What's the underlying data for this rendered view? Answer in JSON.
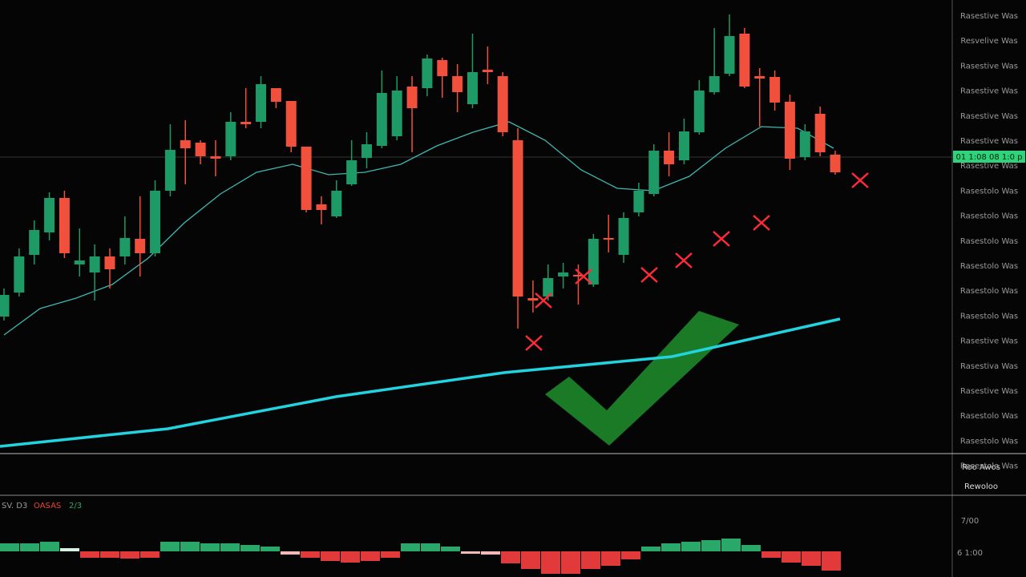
{
  "price_axis_labels": [
    "Rasestive Was",
    "Resvelive Was",
    "Rasestive Was",
    "Rasestive Was",
    "Rasestive Was",
    "Rasestive Was",
    "Rasestive Was",
    "Rasestolo Was",
    "Rasestolo Was",
    "Rasestolo Was",
    "Rasestolo Was",
    "Rasestolo Was",
    "Rasestolo Was",
    "Rasestive Was",
    "Rasestiva Was",
    "Rasestive Was",
    "Rasestolo Was",
    "Rasestolo Was",
    "Rasestolo Was"
  ],
  "current_price_label": "01 1:08 08 1:0 p",
  "lower_axis_labels": [
    "Roo Awos",
    "Rewoloo"
  ],
  "indicator_labels": [
    "SV. D3",
    "OASAS",
    "2/3"
  ],
  "oscillator_axis_labels": [
    "7/00",
    "6 1:00"
  ],
  "chart_data": {
    "type": "candlestick",
    "ylim": [
      0,
      560
    ],
    "xlim": [
      0,
      1188
    ],
    "up_color": "#1e9a66",
    "down_color": "#f0503c",
    "candles": [
      {
        "o": 165,
        "h": 200,
        "l": 160,
        "c": 192
      },
      {
        "o": 195,
        "h": 250,
        "l": 190,
        "c": 240
      },
      {
        "o": 242,
        "h": 285,
        "l": 230,
        "c": 273
      },
      {
        "o": 270,
        "h": 320,
        "l": 260,
        "c": 313
      },
      {
        "o": 313,
        "h": 322,
        "l": 238,
        "c": 244
      },
      {
        "o": 230,
        "h": 275,
        "l": 215,
        "c": 235
      },
      {
        "o": 220,
        "h": 255,
        "l": 185,
        "c": 240
      },
      {
        "o": 240,
        "h": 250,
        "l": 200,
        "c": 224
      },
      {
        "o": 240,
        "h": 290,
        "l": 230,
        "c": 263
      },
      {
        "o": 262,
        "h": 315,
        "l": 215,
        "c": 244
      },
      {
        "o": 244,
        "h": 335,
        "l": 240,
        "c": 322
      },
      {
        "o": 322,
        "h": 405,
        "l": 315,
        "c": 373
      },
      {
        "o": 385,
        "h": 410,
        "l": 330,
        "c": 375
      },
      {
        "o": 382,
        "h": 385,
        "l": 355,
        "c": 365
      },
      {
        "o": 365,
        "h": 385,
        "l": 340,
        "c": 362
      },
      {
        "o": 365,
        "h": 420,
        "l": 360,
        "c": 408
      },
      {
        "o": 408,
        "h": 450,
        "l": 400,
        "c": 405
      },
      {
        "o": 408,
        "h": 465,
        "l": 400,
        "c": 455
      },
      {
        "o": 450,
        "h": 450,
        "l": 425,
        "c": 433
      },
      {
        "o": 434,
        "h": 434,
        "l": 370,
        "c": 377
      },
      {
        "o": 377,
        "h": 377,
        "l": 295,
        "c": 298
      },
      {
        "o": 305,
        "h": 315,
        "l": 280,
        "c": 298
      },
      {
        "o": 290,
        "h": 335,
        "l": 288,
        "c": 322
      },
      {
        "o": 330,
        "h": 385,
        "l": 328,
        "c": 360
      },
      {
        "o": 363,
        "h": 395,
        "l": 350,
        "c": 380
      },
      {
        "o": 378,
        "h": 472,
        "l": 375,
        "c": 444
      },
      {
        "o": 390,
        "h": 465,
        "l": 385,
        "c": 447
      },
      {
        "o": 452,
        "h": 465,
        "l": 370,
        "c": 425
      },
      {
        "o": 450,
        "h": 492,
        "l": 440,
        "c": 487
      },
      {
        "o": 485,
        "h": 488,
        "l": 438,
        "c": 465
      },
      {
        "o": 465,
        "h": 480,
        "l": 420,
        "c": 445
      },
      {
        "o": 430,
        "h": 518,
        "l": 425,
        "c": 470
      },
      {
        "o": 473,
        "h": 502,
        "l": 455,
        "c": 470
      },
      {
        "o": 465,
        "h": 470,
        "l": 390,
        "c": 395
      },
      {
        "o": 385,
        "h": 400,
        "l": 150,
        "c": 190
      },
      {
        "o": 188,
        "h": 210,
        "l": 170,
        "c": 185
      },
      {
        "o": 190,
        "h": 230,
        "l": 185,
        "c": 213
      },
      {
        "o": 215,
        "h": 232,
        "l": 200,
        "c": 220
      },
      {
        "o": 217,
        "h": 230,
        "l": 180,
        "c": 215
      },
      {
        "o": 205,
        "h": 268,
        "l": 202,
        "c": 262
      },
      {
        "o": 263,
        "h": 292,
        "l": 245,
        "c": 261
      },
      {
        "o": 242,
        "h": 295,
        "l": 232,
        "c": 288
      },
      {
        "o": 295,
        "h": 332,
        "l": 290,
        "c": 322
      },
      {
        "o": 318,
        "h": 380,
        "l": 315,
        "c": 372
      },
      {
        "o": 372,
        "h": 395,
        "l": 340,
        "c": 355
      },
      {
        "o": 360,
        "h": 412,
        "l": 355,
        "c": 396
      },
      {
        "o": 395,
        "h": 460,
        "l": 392,
        "c": 447
      },
      {
        "o": 445,
        "h": 525,
        "l": 442,
        "c": 465
      },
      {
        "o": 468,
        "h": 542,
        "l": 465,
        "c": 515
      },
      {
        "o": 518,
        "h": 525,
        "l": 450,
        "c": 452
      },
      {
        "o": 465,
        "h": 475,
        "l": 402,
        "c": 462
      },
      {
        "o": 464,
        "h": 472,
        "l": 422,
        "c": 432
      },
      {
        "o": 433,
        "h": 442,
        "l": 348,
        "c": 362
      },
      {
        "o": 364,
        "h": 405,
        "l": 360,
        "c": 396
      },
      {
        "o": 418,
        "h": 427,
        "l": 365,
        "c": 370
      },
      {
        "o": 367,
        "h": 372,
        "l": 342,
        "c": 345
      }
    ],
    "moving_average": {
      "color": "#3fb8b0",
      "values": [
        142,
        175,
        188,
        205,
        238,
        282,
        318,
        345,
        355,
        342,
        345,
        355,
        378,
        395,
        408,
        385,
        348,
        325,
        322,
        340,
        375,
        402,
        400,
        375
      ]
    },
    "trend_line": {
      "color": "#22d3e0",
      "values": [
        3,
        25,
        65,
        95,
        115,
        162
      ]
    },
    "crosses": {
      "color": "#ff2a3a",
      "x": [
        666,
        678,
        728,
        810,
        853,
        900,
        950,
        1073
      ],
      "values": [
        132,
        185,
        215,
        217,
        235,
        262,
        282,
        335
      ]
    },
    "oscillator": {
      "ylim": [
        -30,
        30
      ],
      "values": [
        10,
        10,
        12,
        4,
        -8,
        -8,
        -9,
        -8,
        12,
        12,
        10,
        10,
        8,
        6,
        -4,
        -8,
        -12,
        -14,
        -12,
        -8,
        10,
        10,
        6,
        -3,
        -4,
        -15,
        -22,
        -28,
        -28,
        -22,
        -18,
        -10,
        6,
        10,
        12,
        14,
        16,
        8,
        -8,
        -14,
        -18,
        -24
      ]
    }
  }
}
